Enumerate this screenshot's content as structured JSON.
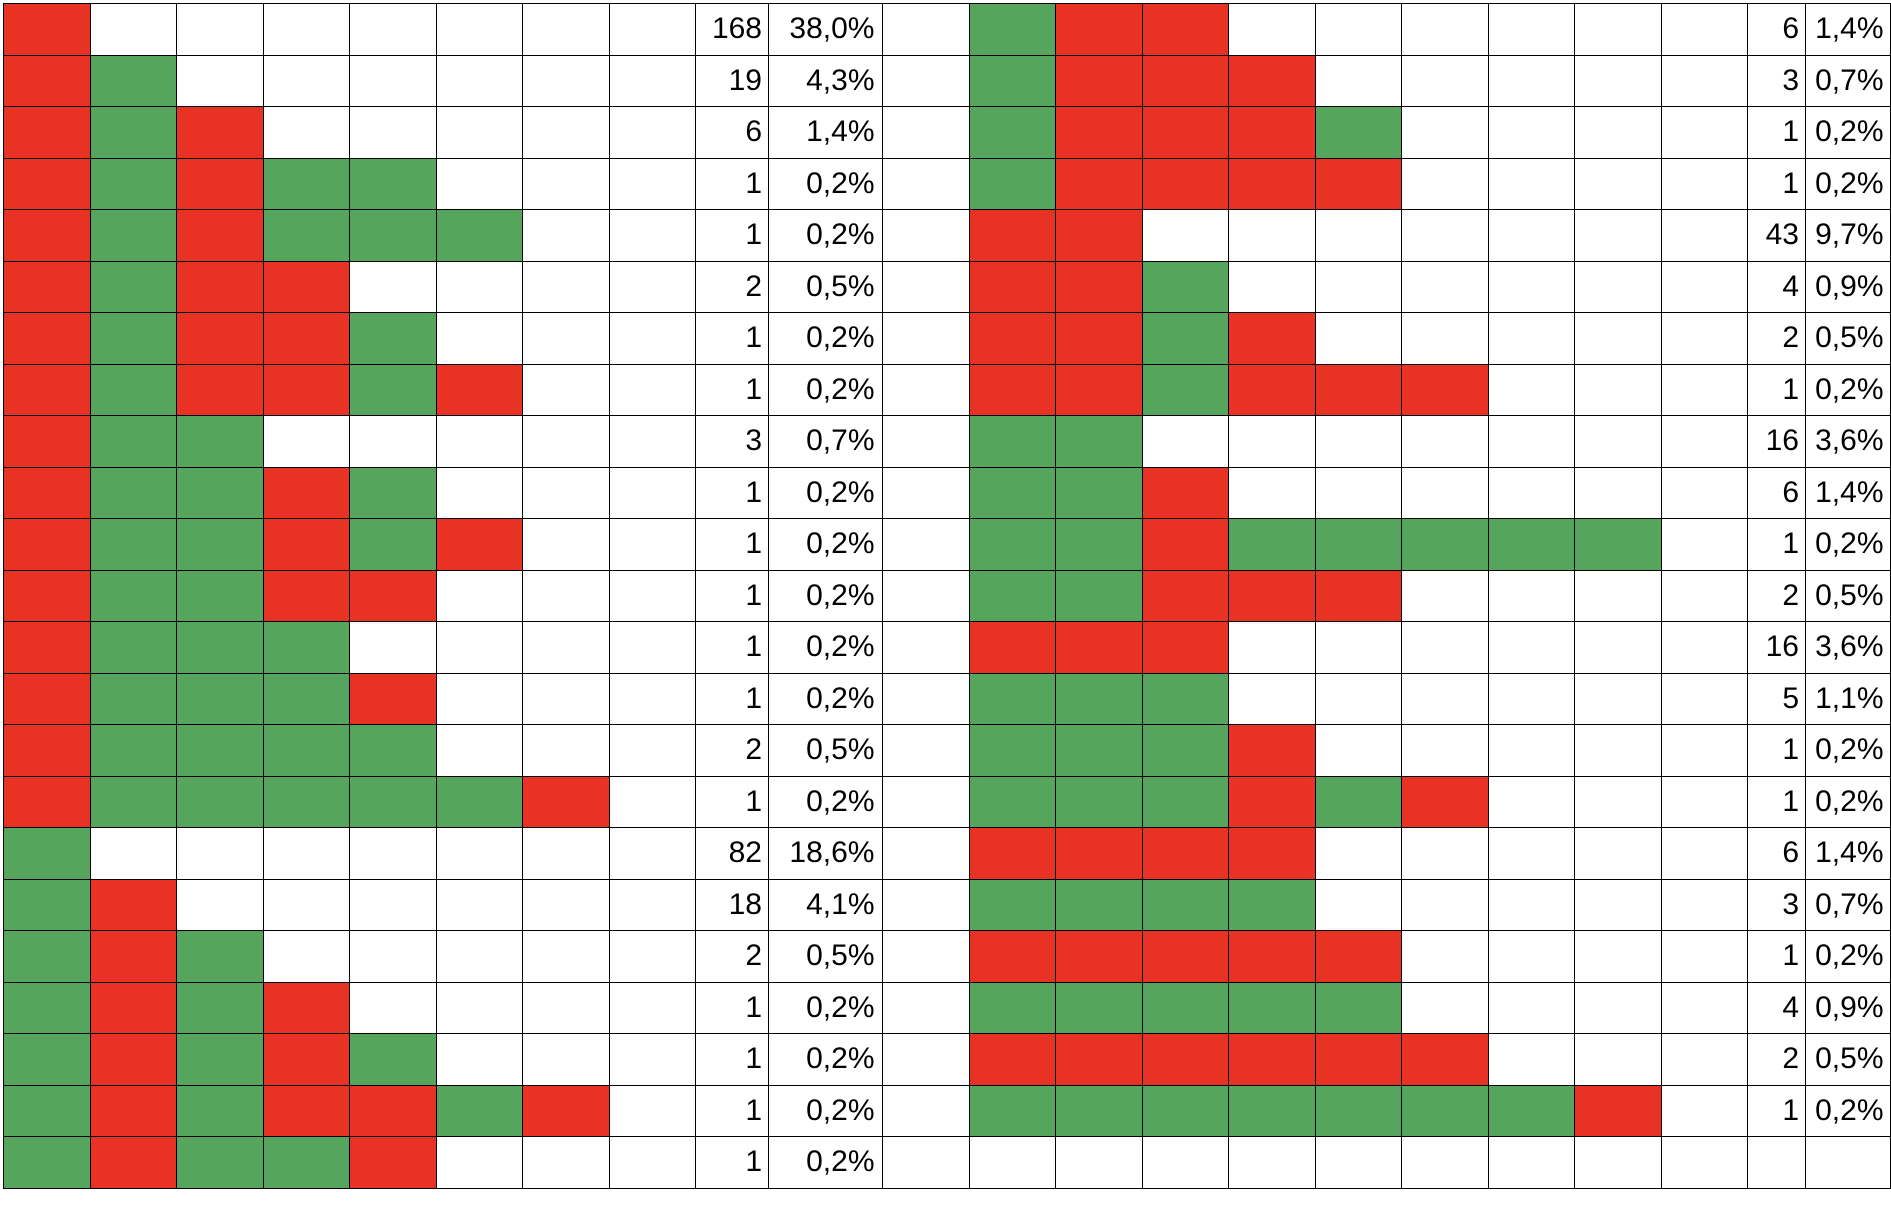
{
  "colors": {
    "R": "#e83224",
    "G": "#55a55c",
    "empty": "#ffffff"
  },
  "left_table": [
    {
      "pattern": "R-------",
      "count": "168",
      "percent": "38,0%"
    },
    {
      "pattern": "RG------",
      "count": "19",
      "percent": "4,3%"
    },
    {
      "pattern": "RGR-----",
      "count": "6",
      "percent": "1,4%"
    },
    {
      "pattern": "RGRGG---",
      "count": "1",
      "percent": "0,2%"
    },
    {
      "pattern": "RGRGGG--",
      "count": "1",
      "percent": "0,2%"
    },
    {
      "pattern": "RGRR----",
      "count": "2",
      "percent": "0,5%"
    },
    {
      "pattern": "RGRRG---",
      "count": "1",
      "percent": "0,2%"
    },
    {
      "pattern": "RGRRGR--",
      "count": "1",
      "percent": "0,2%"
    },
    {
      "pattern": "RGG-----",
      "count": "3",
      "percent": "0,7%"
    },
    {
      "pattern": "RGGRG---",
      "count": "1",
      "percent": "0,2%"
    },
    {
      "pattern": "RGGRGR--",
      "count": "1",
      "percent": "0,2%"
    },
    {
      "pattern": "RGGRR---",
      "count": "1",
      "percent": "0,2%"
    },
    {
      "pattern": "RGGG----",
      "count": "1",
      "percent": "0,2%"
    },
    {
      "pattern": "RGGGR---",
      "count": "1",
      "percent": "0,2%"
    },
    {
      "pattern": "RGGGG---",
      "count": "2",
      "percent": "0,5%"
    },
    {
      "pattern": "RGGGGGR-",
      "count": "1",
      "percent": "0,2%"
    },
    {
      "pattern": "G-------",
      "count": "82",
      "percent": "18,6%"
    },
    {
      "pattern": "GR------",
      "count": "18",
      "percent": "4,1%"
    },
    {
      "pattern": "GRG-----",
      "count": "2",
      "percent": "0,5%"
    },
    {
      "pattern": "GRGR----",
      "count": "1",
      "percent": "0,2%"
    },
    {
      "pattern": "GRGRG---",
      "count": "1",
      "percent": "0,2%"
    },
    {
      "pattern": "GRGRRGR-",
      "count": "1",
      "percent": "0,2%"
    },
    {
      "pattern": "GRGGR---",
      "count": "1",
      "percent": "0,2%"
    }
  ],
  "right_table": [
    {
      "pattern": "GRR------",
      "count": "6",
      "percent": "1,4%"
    },
    {
      "pattern": "GRRR-----",
      "count": "3",
      "percent": "0,7%"
    },
    {
      "pattern": "GRRRG----",
      "count": "1",
      "percent": "0,2%"
    },
    {
      "pattern": "GRRRR----",
      "count": "1",
      "percent": "0,2%"
    },
    {
      "pattern": "RR-------",
      "count": "43",
      "percent": "9,7%"
    },
    {
      "pattern": "RRG------",
      "count": "4",
      "percent": "0,9%"
    },
    {
      "pattern": "RRGR-----",
      "count": "2",
      "percent": "0,5%"
    },
    {
      "pattern": "RRGRRR---",
      "count": "1",
      "percent": "0,2%"
    },
    {
      "pattern": "GG-------",
      "count": "16",
      "percent": "3,6%"
    },
    {
      "pattern": "GGR------",
      "count": "6",
      "percent": "1,4%"
    },
    {
      "pattern": "GGRGGGGG-",
      "count": "1",
      "percent": "0,2%"
    },
    {
      "pattern": "GGRRR----",
      "count": "2",
      "percent": "0,5%"
    },
    {
      "pattern": "RRR------",
      "count": "16",
      "percent": "3,6%"
    },
    {
      "pattern": "GGG------",
      "count": "5",
      "percent": "1,1%"
    },
    {
      "pattern": "GGGR-----",
      "count": "1",
      "percent": "0,2%"
    },
    {
      "pattern": "GGGRGR---",
      "count": "1",
      "percent": "0,2%"
    },
    {
      "pattern": "RRRR-----",
      "count": "6",
      "percent": "1,4%"
    },
    {
      "pattern": "GGGG-----",
      "count": "3",
      "percent": "0,7%"
    },
    {
      "pattern": "RRRRR----",
      "count": "1",
      "percent": "0,2%"
    },
    {
      "pattern": "GGGGG----",
      "count": "4",
      "percent": "0,9%"
    },
    {
      "pattern": "RRRRRR---",
      "count": "2",
      "percent": "0,5%"
    },
    {
      "pattern": "GGGGGGGR-",
      "count": "1",
      "percent": "0,2%"
    },
    {
      "pattern": "---------",
      "count": "",
      "percent": ""
    }
  ]
}
